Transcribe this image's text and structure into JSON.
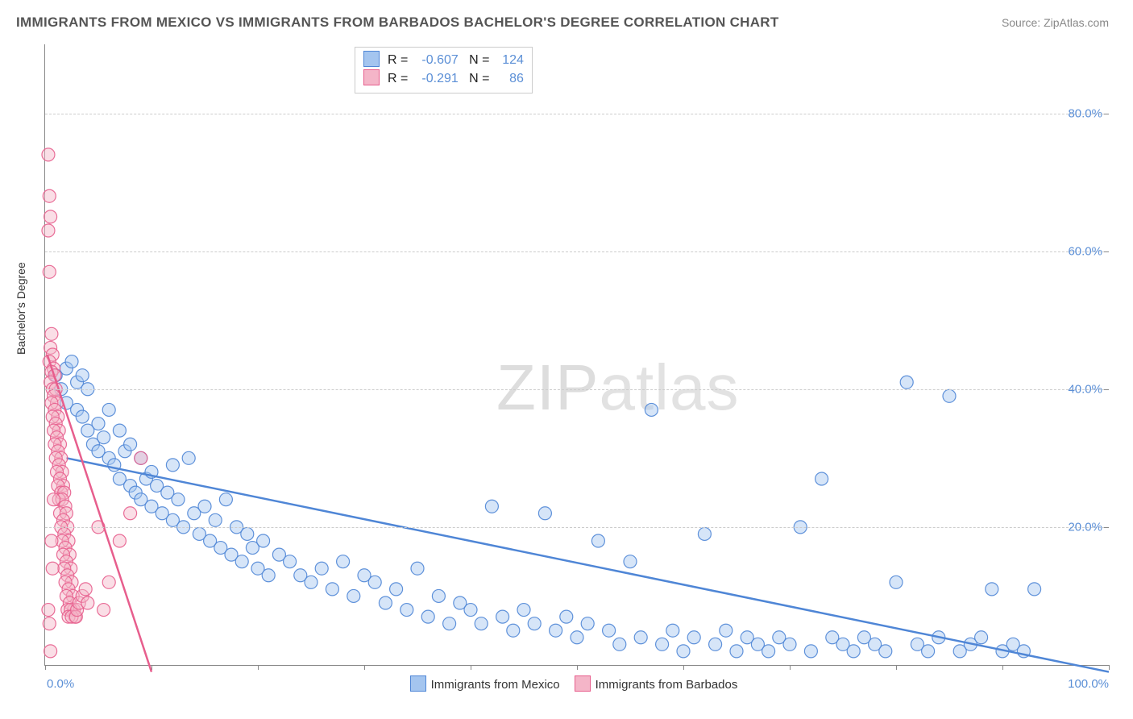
{
  "title": "IMMIGRANTS FROM MEXICO VS IMMIGRANTS FROM BARBADOS BACHELOR'S DEGREE CORRELATION CHART",
  "source": "Source: ZipAtlas.com",
  "watermark_a": "ZIP",
  "watermark_b": "atlas",
  "chart": {
    "type": "scatter",
    "xlim": [
      0,
      100
    ],
    "ylim": [
      0,
      90
    ],
    "x_label_min": "0.0%",
    "x_label_max": "100.0%",
    "x_tick_positions": [
      0,
      10,
      20,
      30,
      40,
      50,
      60,
      70,
      80,
      90,
      100
    ],
    "y_ticks": [
      {
        "v": 20,
        "label": "20.0%"
      },
      {
        "v": 40,
        "label": "40.0%"
      },
      {
        "v": 60,
        "label": "60.0%"
      },
      {
        "v": 80,
        "label": "80.0%"
      }
    ],
    "y_axis_label": "Bachelor's Degree",
    "background_color": "#ffffff",
    "grid_color": "#cccccc",
    "marker_radius": 8,
    "marker_opacity": 0.45,
    "marker_stroke_opacity": 0.9,
    "line_width": 2.5,
    "series": [
      {
        "name": "Immigrants from Mexico",
        "fill": "#a4c5ef",
        "stroke": "#4f86d6",
        "r_label": "R =",
        "r_value": "-0.607",
        "n_label": "N =",
        "n_value": "124",
        "trend": {
          "x1": 2,
          "y1": 30,
          "x2": 100,
          "y2": -1
        },
        "points": [
          [
            1,
            42
          ],
          [
            1.5,
            40
          ],
          [
            2,
            43
          ],
          [
            2,
            38
          ],
          [
            2.5,
            44
          ],
          [
            3,
            41
          ],
          [
            3,
            37
          ],
          [
            3.5,
            36
          ],
          [
            3.5,
            42
          ],
          [
            4,
            34
          ],
          [
            4,
            40
          ],
          [
            4.5,
            32
          ],
          [
            5,
            35
          ],
          [
            5,
            31
          ],
          [
            5.5,
            33
          ],
          [
            6,
            30
          ],
          [
            6,
            37
          ],
          [
            6.5,
            29
          ],
          [
            7,
            34
          ],
          [
            7,
            27
          ],
          [
            7.5,
            31
          ],
          [
            8,
            26
          ],
          [
            8,
            32
          ],
          [
            8.5,
            25
          ],
          [
            9,
            30
          ],
          [
            9,
            24
          ],
          [
            9.5,
            27
          ],
          [
            10,
            23
          ],
          [
            10,
            28
          ],
          [
            10.5,
            26
          ],
          [
            11,
            22
          ],
          [
            11.5,
            25
          ],
          [
            12,
            21
          ],
          [
            12,
            29
          ],
          [
            12.5,
            24
          ],
          [
            13,
            20
          ],
          [
            13.5,
            30
          ],
          [
            14,
            22
          ],
          [
            14.5,
            19
          ],
          [
            15,
            23
          ],
          [
            15.5,
            18
          ],
          [
            16,
            21
          ],
          [
            16.5,
            17
          ],
          [
            17,
            24
          ],
          [
            17.5,
            16
          ],
          [
            18,
            20
          ],
          [
            18.5,
            15
          ],
          [
            19,
            19
          ],
          [
            19.5,
            17
          ],
          [
            20,
            14
          ],
          [
            20.5,
            18
          ],
          [
            21,
            13
          ],
          [
            22,
            16
          ],
          [
            23,
            15
          ],
          [
            24,
            13
          ],
          [
            25,
            12
          ],
          [
            26,
            14
          ],
          [
            27,
            11
          ],
          [
            28,
            15
          ],
          [
            29,
            10
          ],
          [
            30,
            13
          ],
          [
            31,
            12
          ],
          [
            32,
            9
          ],
          [
            33,
            11
          ],
          [
            34,
            8
          ],
          [
            35,
            14
          ],
          [
            36,
            7
          ],
          [
            37,
            10
          ],
          [
            38,
            6
          ],
          [
            39,
            9
          ],
          [
            40,
            8
          ],
          [
            41,
            6
          ],
          [
            42,
            23
          ],
          [
            43,
            7
          ],
          [
            44,
            5
          ],
          [
            45,
            8
          ],
          [
            46,
            6
          ],
          [
            47,
            22
          ],
          [
            48,
            5
          ],
          [
            49,
            7
          ],
          [
            50,
            4
          ],
          [
            51,
            6
          ],
          [
            52,
            18
          ],
          [
            53,
            5
          ],
          [
            54,
            3
          ],
          [
            55,
            15
          ],
          [
            56,
            4
          ],
          [
            57,
            37
          ],
          [
            58,
            3
          ],
          [
            59,
            5
          ],
          [
            60,
            2
          ],
          [
            61,
            4
          ],
          [
            62,
            19
          ],
          [
            63,
            3
          ],
          [
            64,
            5
          ],
          [
            65,
            2
          ],
          [
            66,
            4
          ],
          [
            67,
            3
          ],
          [
            68,
            2
          ],
          [
            69,
            4
          ],
          [
            70,
            3
          ],
          [
            71,
            20
          ],
          [
            72,
            2
          ],
          [
            73,
            27
          ],
          [
            74,
            4
          ],
          [
            75,
            3
          ],
          [
            76,
            2
          ],
          [
            77,
            4
          ],
          [
            78,
            3
          ],
          [
            79,
            2
          ],
          [
            80,
            12
          ],
          [
            81,
            41
          ],
          [
            82,
            3
          ],
          [
            83,
            2
          ],
          [
            84,
            4
          ],
          [
            85,
            39
          ],
          [
            86,
            2
          ],
          [
            87,
            3
          ],
          [
            88,
            4
          ],
          [
            89,
            11
          ],
          [
            90,
            2
          ],
          [
            91,
            3
          ],
          [
            92,
            2
          ],
          [
            93,
            11
          ]
        ]
      },
      {
        "name": "Immigrants from Barbados",
        "fill": "#f4b5c8",
        "stroke": "#e75e8d",
        "r_label": "R =",
        "r_value": "-0.291",
        "n_label": "N =",
        "n_value": "86",
        "trend": {
          "x1": 0.2,
          "y1": 45,
          "x2": 10,
          "y2": -1
        },
        "points": [
          [
            0.3,
            74
          ],
          [
            0.4,
            68
          ],
          [
            0.5,
            65
          ],
          [
            0.3,
            63
          ],
          [
            0.4,
            57
          ],
          [
            0.6,
            48
          ],
          [
            0.5,
            46
          ],
          [
            0.7,
            45
          ],
          [
            0.4,
            44
          ],
          [
            0.8,
            43
          ],
          [
            0.6,
            42.5
          ],
          [
            0.9,
            42
          ],
          [
            0.5,
            41
          ],
          [
            0.7,
            40
          ],
          [
            1.0,
            40
          ],
          [
            0.8,
            39
          ],
          [
            1.1,
            38
          ],
          [
            0.6,
            38
          ],
          [
            0.9,
            37
          ],
          [
            1.2,
            36
          ],
          [
            0.7,
            36
          ],
          [
            1.0,
            35
          ],
          [
            1.3,
            34
          ],
          [
            0.8,
            34
          ],
          [
            1.1,
            33
          ],
          [
            1.4,
            32
          ],
          [
            0.9,
            32
          ],
          [
            1.2,
            31
          ],
          [
            1.5,
            30
          ],
          [
            1.0,
            30
          ],
          [
            1.3,
            29
          ],
          [
            1.6,
            28
          ],
          [
            1.1,
            28
          ],
          [
            1.4,
            27
          ],
          [
            1.7,
            26
          ],
          [
            1.2,
            26
          ],
          [
            1.5,
            25
          ],
          [
            1.8,
            25
          ],
          [
            1.3,
            24
          ],
          [
            1.6,
            24
          ],
          [
            1.9,
            23
          ],
          [
            1.4,
            22
          ],
          [
            2.0,
            22
          ],
          [
            1.7,
            21
          ],
          [
            2.1,
            20
          ],
          [
            1.5,
            20
          ],
          [
            1.8,
            19
          ],
          [
            2.2,
            18
          ],
          [
            1.6,
            18
          ],
          [
            1.9,
            17
          ],
          [
            2.3,
            16
          ],
          [
            1.7,
            16
          ],
          [
            2.0,
            15
          ],
          [
            2.4,
            14
          ],
          [
            1.8,
            14
          ],
          [
            2.1,
            13
          ],
          [
            2.5,
            12
          ],
          [
            1.9,
            12
          ],
          [
            2.2,
            11
          ],
          [
            2.6,
            10
          ],
          [
            2.0,
            10
          ],
          [
            2.3,
            9
          ],
          [
            2.7,
            8
          ],
          [
            2.1,
            8
          ],
          [
            2.4,
            8
          ],
          [
            2.8,
            7
          ],
          [
            2.2,
            7
          ],
          [
            2.5,
            7
          ],
          [
            2.9,
            7
          ],
          [
            3.0,
            8
          ],
          [
            3.2,
            9
          ],
          [
            3.5,
            10
          ],
          [
            3.8,
            11
          ],
          [
            4.0,
            9
          ],
          [
            5.0,
            20
          ],
          [
            5.5,
            8
          ],
          [
            6.0,
            12
          ],
          [
            7.0,
            18
          ],
          [
            8.0,
            22
          ],
          [
            9.0,
            30
          ],
          [
            0.3,
            8
          ],
          [
            0.4,
            6
          ],
          [
            0.5,
            2
          ],
          [
            0.6,
            18
          ],
          [
            0.7,
            14
          ],
          [
            0.8,
            24
          ]
        ]
      }
    ]
  },
  "bottom_legend": {
    "items": [
      {
        "label": "Immigrants from Mexico",
        "fill": "#a4c5ef",
        "stroke": "#4f86d6"
      },
      {
        "label": "Immigrants from Barbados",
        "fill": "#f4b5c8",
        "stroke": "#e75e8d"
      }
    ]
  }
}
